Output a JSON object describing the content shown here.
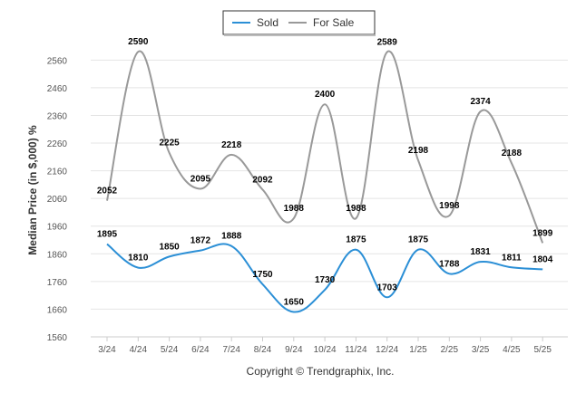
{
  "chart_data": {
    "type": "line",
    "categories": [
      "3/24",
      "4/24",
      "5/24",
      "6/24",
      "7/24",
      "8/24",
      "9/24",
      "10/24",
      "11/24",
      "12/24",
      "1/25",
      "2/25",
      "3/25",
      "4/25",
      "5/25"
    ],
    "series": [
      {
        "name": "Sold",
        "color": "#2b8fd6",
        "values": [
          1895,
          1810,
          1850,
          1872,
          1888,
          1750,
          1650,
          1730,
          1875,
          1703,
          1875,
          1788,
          1831,
          1811,
          1804
        ]
      },
      {
        "name": "For Sale",
        "color": "#999999",
        "values": [
          2052,
          2590,
          2225,
          2095,
          2218,
          2092,
          1988,
          2400,
          1988,
          2589,
          2198,
          1998,
          2374,
          2188,
          1899
        ]
      }
    ],
    "ylabel": "Median Price (in $,000) %",
    "xlabel": "",
    "ylim": [
      1560,
      2620
    ],
    "yticks": [
      1560,
      1660,
      1760,
      1860,
      1960,
      2060,
      2160,
      2260,
      2360,
      2460,
      2560
    ],
    "grid": true,
    "legend": "top-center"
  },
  "footer": {
    "credit": "Copyright © Trendgraphix, Inc."
  }
}
